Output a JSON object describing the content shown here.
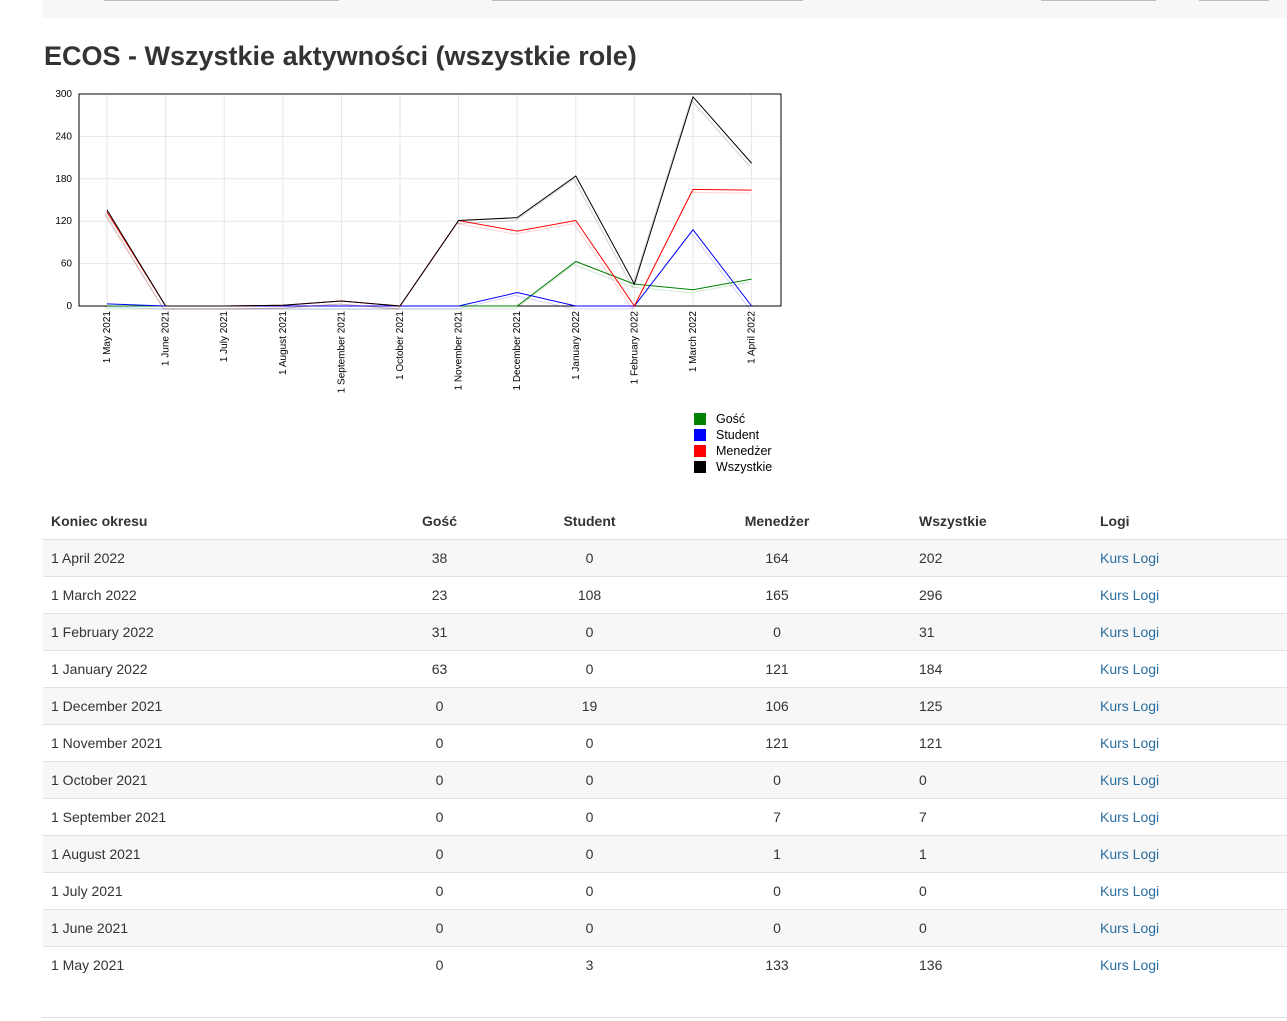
{
  "page": {
    "title": "ECOS - Wszystkie aktywności (wszystkie role)"
  },
  "chart_data": {
    "type": "line",
    "categories": [
      "1 May 2021",
      "1 June 2021",
      "1 July 2021",
      "1 August 2021",
      "1 September 2021",
      "1 October 2021",
      "1 November 2021",
      "1 December 2021",
      "1 January 2022",
      "1 February 2022",
      "1 March 2022",
      "1 April 2022"
    ],
    "ylim": [
      0,
      300
    ],
    "yticks": [
      "0",
      "60",
      "120",
      "180",
      "240",
      "300"
    ],
    "grid": true,
    "legend_position": "bottom-right",
    "series": [
      {
        "name": "Gość",
        "color": "#008000",
        "values": [
          0,
          0,
          0,
          0,
          0,
          0,
          0,
          0,
          63,
          31,
          23,
          38
        ]
      },
      {
        "name": "Student",
        "color": "#0000ff",
        "values": [
          3,
          0,
          0,
          0,
          0,
          0,
          0,
          19,
          0,
          0,
          108,
          0
        ]
      },
      {
        "name": "Menedżer",
        "color": "#ff0000",
        "values": [
          133,
          0,
          0,
          1,
          7,
          0,
          121,
          106,
          121,
          0,
          165,
          164
        ]
      },
      {
        "name": "Wszystkie",
        "color": "#000000",
        "values": [
          136,
          0,
          0,
          1,
          7,
          0,
          121,
          125,
          184,
          31,
          296,
          202
        ]
      }
    ]
  },
  "table": {
    "headers": {
      "period": "Koniec okresu",
      "guest": "Gość",
      "student": "Student",
      "manager": "Menedżer",
      "all": "Wszystkie",
      "logs": "Logi"
    },
    "rows": [
      {
        "period": "1 April 2022",
        "guest": "38",
        "student": "0",
        "manager": "164",
        "all": "202",
        "logs": "Kurs Logi"
      },
      {
        "period": "1 March 2022",
        "guest": "23",
        "student": "108",
        "manager": "165",
        "all": "296",
        "logs": "Kurs Logi"
      },
      {
        "period": "1 February 2022",
        "guest": "31",
        "student": "0",
        "manager": "0",
        "all": "31",
        "logs": "Kurs Logi"
      },
      {
        "period": "1 January 2022",
        "guest": "63",
        "student": "0",
        "manager": "121",
        "all": "184",
        "logs": "Kurs Logi"
      },
      {
        "period": "1 December 2021",
        "guest": "0",
        "student": "19",
        "manager": "106",
        "all": "125",
        "logs": "Kurs Logi"
      },
      {
        "period": "1 November 2021",
        "guest": "0",
        "student": "0",
        "manager": "121",
        "all": "121",
        "logs": "Kurs Logi"
      },
      {
        "period": "1 October 2021",
        "guest": "0",
        "student": "0",
        "manager": "0",
        "all": "0",
        "logs": "Kurs Logi"
      },
      {
        "period": "1 September 2021",
        "guest": "0",
        "student": "0",
        "manager": "7",
        "all": "7",
        "logs": "Kurs Logi"
      },
      {
        "period": "1 August 2021",
        "guest": "0",
        "student": "0",
        "manager": "1",
        "all": "1",
        "logs": "Kurs Logi"
      },
      {
        "period": "1 July 2021",
        "guest": "0",
        "student": "0",
        "manager": "0",
        "all": "0",
        "logs": "Kurs Logi"
      },
      {
        "period": "1 June 2021",
        "guest": "0",
        "student": "0",
        "manager": "0",
        "all": "0",
        "logs": "Kurs Logi"
      },
      {
        "period": "1 May 2021",
        "guest": "0",
        "student": "3",
        "manager": "133",
        "all": "136",
        "logs": "Kurs Logi"
      }
    ]
  }
}
